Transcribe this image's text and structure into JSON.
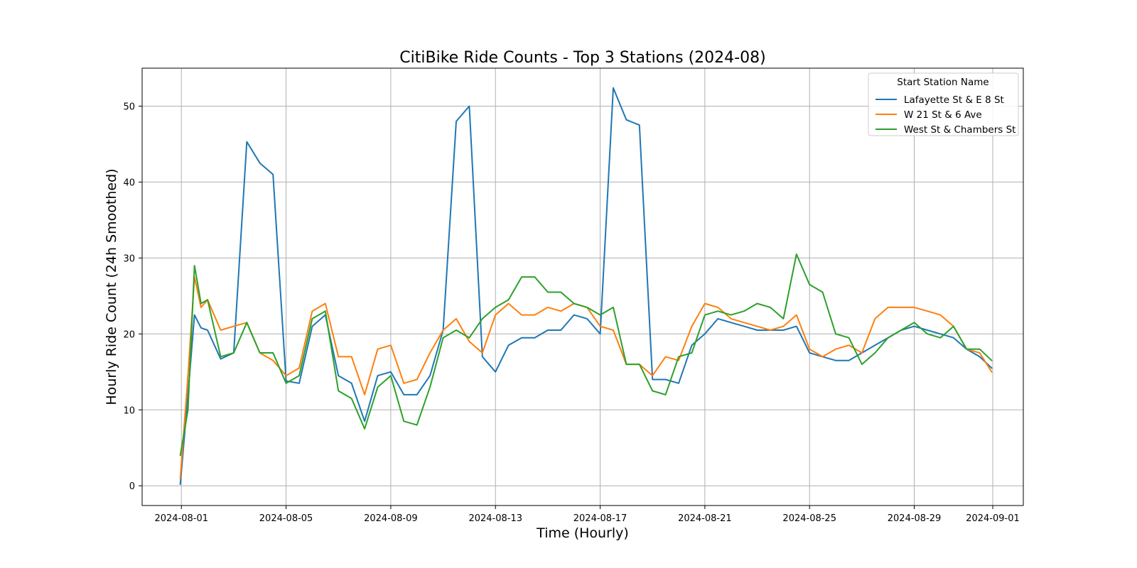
{
  "chart_data": {
    "type": "line",
    "title": "CitiBike Ride Counts - Top 3 Stations (2024-08)",
    "xlabel": "Time (Hourly)",
    "ylabel": "Hourly Ride Count (24h Smoothed)",
    "xlim": [
      "2024-07-30T12:00",
      "2024-09-02T04:00"
    ],
    "ylim": [
      -2.6,
      55
    ],
    "x_ticks": [
      "2024-08-01",
      "2024-08-05",
      "2024-08-09",
      "2024-08-13",
      "2024-08-17",
      "2024-08-21",
      "2024-08-25",
      "2024-08-29",
      "2024-09-01"
    ],
    "y_ticks": [
      0,
      10,
      20,
      30,
      40,
      50
    ],
    "grid": true,
    "legend_title": "Start Station Name",
    "legend_position": "top-right",
    "x": [
      "2024-07-31T23:00",
      "2024-08-01T06:00",
      "2024-08-01T12:00",
      "2024-08-01T18:00",
      "2024-08-02T00:00",
      "2024-08-02T12:00",
      "2024-08-03T00:00",
      "2024-08-03T12:00",
      "2024-08-04T00:00",
      "2024-08-04T12:00",
      "2024-08-05T00:00",
      "2024-08-05T12:00",
      "2024-08-06T00:00",
      "2024-08-06T12:00",
      "2024-08-07T00:00",
      "2024-08-07T12:00",
      "2024-08-08T00:00",
      "2024-08-08T12:00",
      "2024-08-09T00:00",
      "2024-08-09T12:00",
      "2024-08-10T00:00",
      "2024-08-10T12:00",
      "2024-08-11T00:00",
      "2024-08-11T12:00",
      "2024-08-12T00:00",
      "2024-08-12T12:00",
      "2024-08-13T00:00",
      "2024-08-13T12:00",
      "2024-08-14T00:00",
      "2024-08-14T12:00",
      "2024-08-15T00:00",
      "2024-08-15T12:00",
      "2024-08-16T00:00",
      "2024-08-16T12:00",
      "2024-08-17T00:00",
      "2024-08-17T12:00",
      "2024-08-18T00:00",
      "2024-08-18T12:00",
      "2024-08-19T00:00",
      "2024-08-19T12:00",
      "2024-08-20T00:00",
      "2024-08-20T12:00",
      "2024-08-21T00:00",
      "2024-08-21T12:00",
      "2024-08-22T00:00",
      "2024-08-22T12:00",
      "2024-08-23T00:00",
      "2024-08-23T12:00",
      "2024-08-24T00:00",
      "2024-08-24T12:00",
      "2024-08-25T00:00",
      "2024-08-25T12:00",
      "2024-08-26T00:00",
      "2024-08-26T12:00",
      "2024-08-27T00:00",
      "2024-08-27T12:00",
      "2024-08-28T00:00",
      "2024-08-28T12:00",
      "2024-08-29T00:00",
      "2024-08-29T12:00",
      "2024-08-30T00:00",
      "2024-08-30T12:00",
      "2024-08-31T00:00",
      "2024-08-31T12:00",
      "2024-08-31T23:00"
    ],
    "series": [
      {
        "name": "Lafayette St & E 8 St",
        "color": "#1f77b4",
        "values": [
          0.2,
          12,
          22.5,
          20.8,
          20.5,
          16.7,
          17.5,
          45.3,
          42.5,
          41,
          13.8,
          13.5,
          21,
          22.5,
          14.5,
          13.5,
          8.5,
          14.5,
          15,
          12,
          12,
          14.5,
          20.5,
          48,
          50,
          17,
          15,
          18.5,
          19.5,
          19.5,
          20.5,
          20.5,
          22.5,
          22,
          20,
          52.4,
          48.2,
          47.5,
          14,
          14,
          13.5,
          18.5,
          20,
          22,
          21.5,
          21,
          20.5,
          20.5,
          20.5,
          21,
          17.5,
          17,
          16.5,
          16.5,
          17.5,
          18.5,
          19.5,
          20.5,
          21,
          20.5,
          20,
          19.5,
          18,
          17,
          15.5
        ]
      },
      {
        "name": "W 21 St & 6 Ave",
        "color": "#ff7f0e",
        "values": [
          1,
          14.5,
          27.5,
          23.5,
          24.5,
          20.5,
          21,
          21.5,
          17.5,
          16.5,
          14.5,
          15.5,
          23,
          24,
          17,
          17,
          12,
          18,
          18.5,
          13.5,
          14,
          17.5,
          20.5,
          22,
          19,
          17.5,
          22.5,
          24,
          22.5,
          22.5,
          23.5,
          23,
          24,
          23.5,
          21,
          20.5,
          16,
          16,
          14.5,
          17,
          16.5,
          21,
          24,
          23.5,
          22,
          21.5,
          21,
          20.5,
          21,
          22.5,
          18,
          17,
          18,
          18.5,
          17.5,
          22,
          23.5,
          23.5,
          23.5,
          23,
          22.5,
          21,
          18,
          17.5,
          15
        ]
      },
      {
        "name": "West St & Chambers St",
        "color": "#2ca02c",
        "values": [
          4,
          10,
          29,
          24,
          24.5,
          17,
          17.5,
          21.5,
          17.5,
          17.5,
          13.5,
          14.5,
          22,
          23,
          12.5,
          11.5,
          7.5,
          13,
          14.5,
          8.5,
          8,
          13,
          19.5,
          20.5,
          19.5,
          22,
          23.5,
          24.5,
          27.5,
          27.5,
          25.5,
          25.5,
          24,
          23.5,
          22.5,
          23.5,
          16,
          16,
          12.5,
          12,
          17,
          17.5,
          22.5,
          23,
          22.5,
          23,
          24,
          23.5,
          22,
          30.5,
          26.5,
          25.5,
          20,
          19.5,
          16,
          17.5,
          19.5,
          20.5,
          21.5,
          20,
          19.5,
          21,
          18,
          18,
          16.5
        ]
      }
    ]
  }
}
